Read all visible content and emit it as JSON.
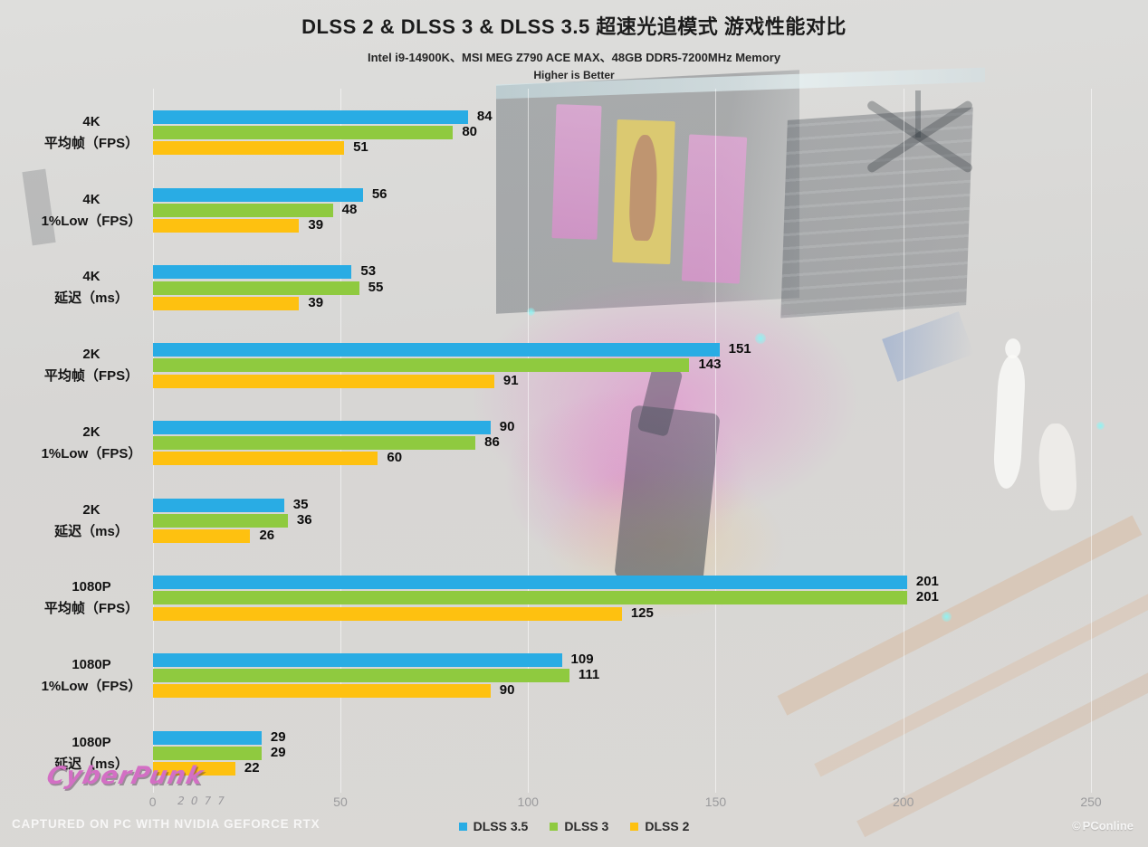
{
  "chart_data": {
    "type": "bar",
    "orientation": "horizontal",
    "title": "DLSS 2 & DLSS 3 & DLSS 3.5 超速光追模式 游戏性能对比",
    "subtitle": "Intel i9-14900K、MSI MEG Z790 ACE MAX、48GB DDR5-7200MHz Memory",
    "note": "Higher is Better",
    "categories": [
      {
        "resolution": "4K",
        "metric": "平均帧（FPS）"
      },
      {
        "resolution": "4K",
        "metric": "1%Low（FPS）"
      },
      {
        "resolution": "4K",
        "metric": "延迟（ms）"
      },
      {
        "resolution": "2K",
        "metric": "平均帧（FPS）"
      },
      {
        "resolution": "2K",
        "metric": "1%Low（FPS）"
      },
      {
        "resolution": "2K",
        "metric": "延迟（ms）"
      },
      {
        "resolution": "1080P",
        "metric": "平均帧（FPS）"
      },
      {
        "resolution": "1080P",
        "metric": "1%Low（FPS）"
      },
      {
        "resolution": "1080P",
        "metric": "延迟（ms）"
      }
    ],
    "series": [
      {
        "name": "DLSS 3.5",
        "color": "#29ace4",
        "values": [
          84,
          56,
          53,
          151,
          90,
          35,
          201,
          109,
          29
        ]
      },
      {
        "name": "DLSS 3",
        "color": "#8fca3f",
        "values": [
          80,
          48,
          55,
          143,
          86,
          36,
          201,
          111,
          29
        ]
      },
      {
        "name": "DLSS 2",
        "color": "#fec110",
        "values": [
          51,
          39,
          39,
          91,
          60,
          26,
          125,
          90,
          22
        ]
      }
    ],
    "xlim": [
      0,
      250
    ],
    "xticks": [
      0,
      50,
      100,
      150,
      200,
      250
    ],
    "grid": true,
    "legend_position": "bottom"
  },
  "footer": {
    "captured": "CAPTURED ON PC WITH NVIDIA GEFORCE RTX",
    "game_logo": "CyberPunk",
    "game_logo_sub": "2077",
    "watermark_symbol": "©",
    "watermark": "PConline"
  }
}
